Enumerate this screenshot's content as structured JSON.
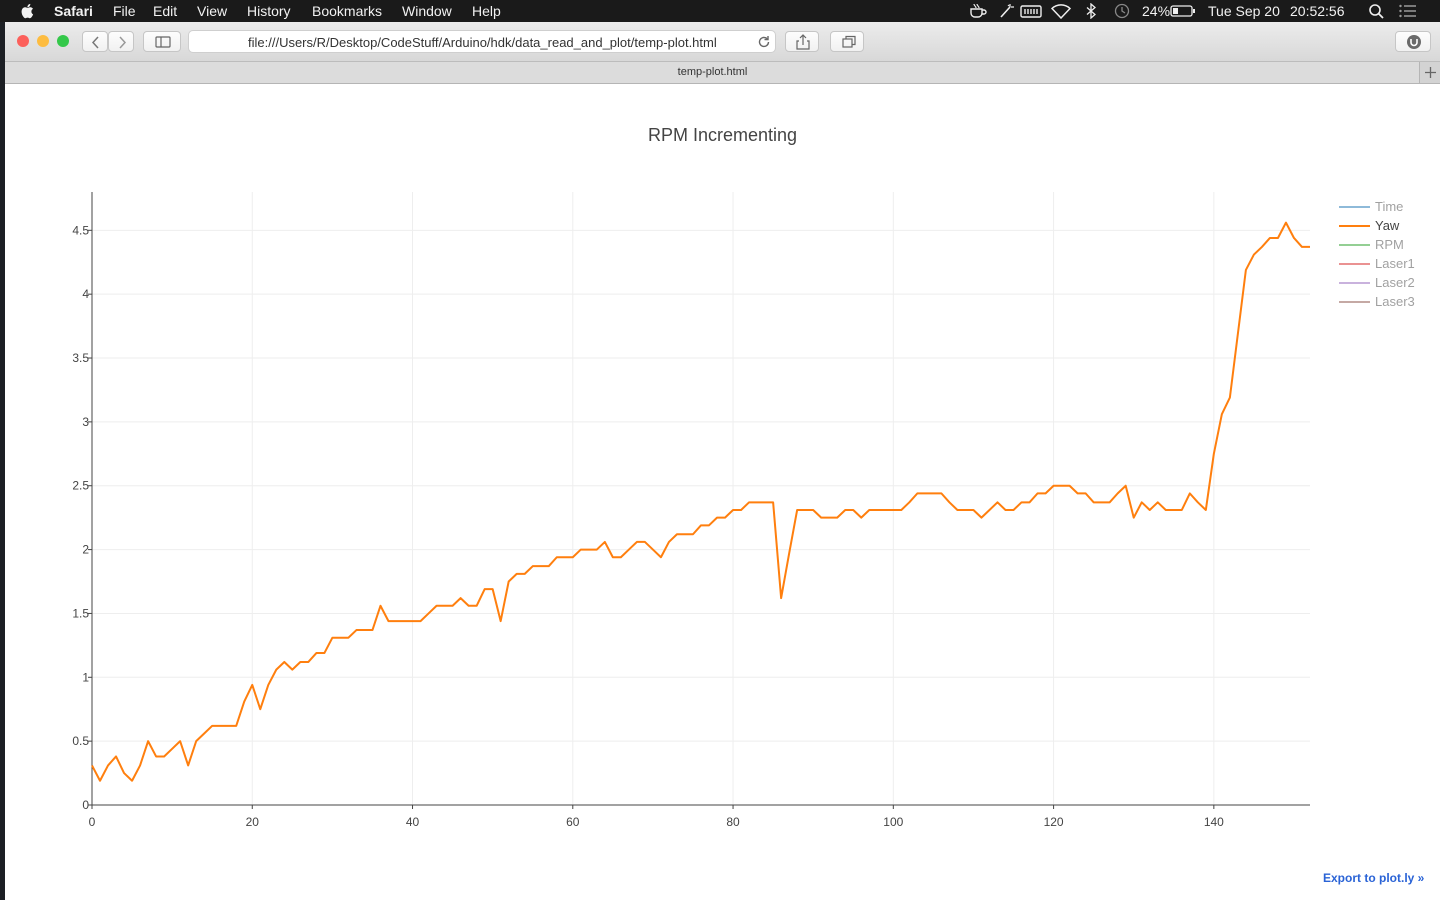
{
  "menubar": {
    "app": "Safari",
    "items": [
      "File",
      "Edit",
      "View",
      "History",
      "Bookmarks",
      "Window",
      "Help"
    ],
    "battery": "24%",
    "date": "Tue Sep 20",
    "time": "20:52:56",
    "icons": [
      "apple-icon",
      "coffee-icon",
      "wand-icon",
      "memory-icon",
      "wifi-icon",
      "bluetooth-icon",
      "time-machine-icon",
      "battery-icon",
      "spotlight-icon",
      "notification-center-icon"
    ]
  },
  "browser": {
    "address": "file:///Users/R/Desktop/CodeStuff/Arduino/hdk/data_read_and_plot/temp-plot.html",
    "tab_title": "temp-plot.html",
    "colors": {
      "close": "#fc605b",
      "minimize": "#fdbc40",
      "zoom": "#34c84a"
    }
  },
  "page": {
    "export_link": "Export to plot.ly »"
  },
  "chart_data": {
    "type": "line",
    "title": "RPM Incrementing",
    "xlabel": "",
    "ylabel": "",
    "xlim": [
      0,
      152
    ],
    "ylim": [
      0,
      4.8
    ],
    "x_ticks": [
      0,
      20,
      40,
      60,
      80,
      100,
      120,
      140
    ],
    "y_ticks": [
      0,
      0.5,
      1,
      1.5,
      2,
      2.5,
      3,
      3.5,
      4,
      4.5
    ],
    "grid": true,
    "legend_position": "right",
    "legend": [
      {
        "name": "Time",
        "color": "#1f77b4",
        "visible": false
      },
      {
        "name": "Yaw",
        "color": "#ff7f0e",
        "visible": true
      },
      {
        "name": "RPM",
        "color": "#2ca02c",
        "visible": false
      },
      {
        "name": "Laser1",
        "color": "#d62728",
        "visible": false
      },
      {
        "name": "Laser2",
        "color": "#9467bd",
        "visible": false
      },
      {
        "name": "Laser3",
        "color": "#8c564b",
        "visible": false
      }
    ],
    "series": [
      {
        "name": "Yaw",
        "color": "#ff7f0e",
        "values": [
          0.31,
          0.19,
          0.31,
          0.38,
          0.25,
          0.19,
          0.31,
          0.5,
          0.38,
          0.38,
          0.44,
          0.5,
          0.31,
          0.5,
          0.56,
          0.62,
          0.62,
          0.62,
          0.62,
          0.81,
          0.94,
          0.75,
          0.94,
          1.06,
          1.12,
          1.06,
          1.12,
          1.12,
          1.19,
          1.19,
          1.31,
          1.31,
          1.31,
          1.37,
          1.37,
          1.37,
          1.56,
          1.44,
          1.44,
          1.44,
          1.44,
          1.44,
          1.5,
          1.56,
          1.56,
          1.56,
          1.62,
          1.56,
          1.56,
          1.69,
          1.69,
          1.44,
          1.75,
          1.81,
          1.81,
          1.87,
          1.87,
          1.87,
          1.94,
          1.94,
          1.94,
          2.0,
          2.0,
          2.0,
          2.06,
          1.94,
          1.94,
          2.0,
          2.06,
          2.06,
          2.0,
          1.94,
          2.06,
          2.12,
          2.12,
          2.12,
          2.19,
          2.19,
          2.25,
          2.25,
          2.31,
          2.31,
          2.37,
          2.37,
          2.37,
          2.37,
          1.62,
          1.97,
          2.31,
          2.31,
          2.31,
          2.25,
          2.25,
          2.25,
          2.31,
          2.31,
          2.25,
          2.31,
          2.31,
          2.31,
          2.31,
          2.31,
          2.37,
          2.44,
          2.44,
          2.44,
          2.44,
          2.37,
          2.31,
          2.31,
          2.31,
          2.25,
          2.31,
          2.37,
          2.31,
          2.31,
          2.37,
          2.37,
          2.44,
          2.44,
          2.5,
          2.5,
          2.5,
          2.44,
          2.44,
          2.37,
          2.37,
          2.37,
          2.44,
          2.5,
          2.25,
          2.37,
          2.31,
          2.37,
          2.31,
          2.31,
          2.31,
          2.44,
          2.37,
          2.31,
          2.75,
          3.06,
          3.19,
          3.69,
          4.19,
          4.31,
          4.37,
          4.44,
          4.44,
          4.56,
          4.44,
          4.37,
          4.37
        ]
      }
    ]
  }
}
